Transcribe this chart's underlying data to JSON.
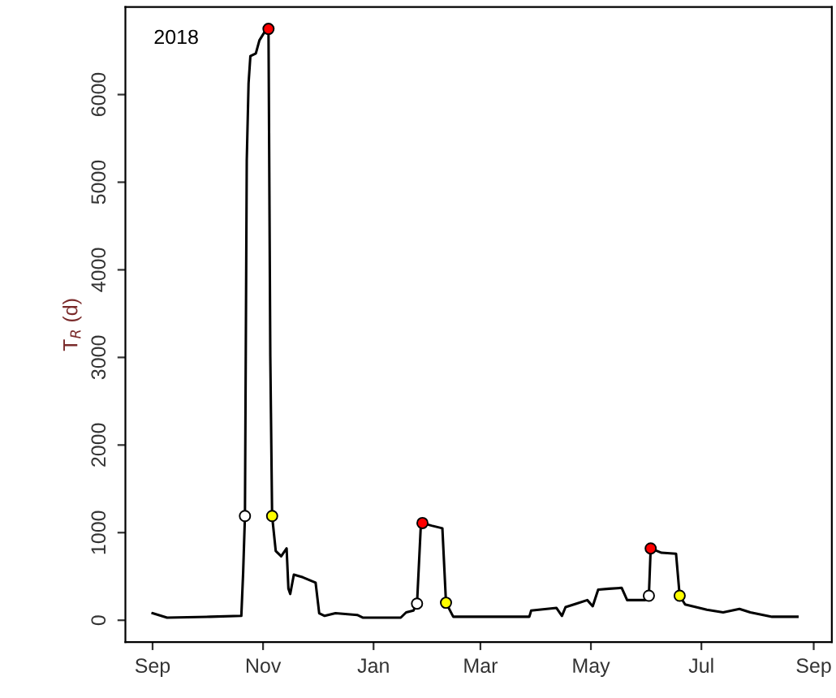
{
  "chart_data": {
    "type": "line",
    "ylabel": "T$_{R}$ (d)",
    "annotations": [
      "2018"
    ],
    "xlim": [
      "2018-08-17",
      "2019-09-11"
    ],
    "ylim": [
      -250,
      7000
    ],
    "xticks": [
      {
        "value": "2018-09-01",
        "label": "Sep"
      },
      {
        "value": "2018-11-01",
        "label": "Nov"
      },
      {
        "value": "2019-01-01",
        "label": "Jan"
      },
      {
        "value": "2019-03-01",
        "label": "Mar"
      },
      {
        "value": "2019-05-01",
        "label": "May"
      },
      {
        "value": "2019-07-01",
        "label": "Jul"
      },
      {
        "value": "2019-09-01",
        "label": "Sep"
      }
    ],
    "yticks": [
      0,
      1000,
      2000,
      3000,
      4000,
      5000,
      6000
    ],
    "grid": false,
    "series": [
      {
        "color": "#000000",
        "marker": "none",
        "line_style": "solid",
        "x": [
          "2018-09-01",
          "2018-09-09",
          "2018-10-03",
          "2018-10-20",
          "2018-10-21",
          "2018-10-22",
          "2018-10-23",
          "2018-10-24",
          "2018-10-25",
          "2018-10-28",
          "2018-10-30",
          "2018-11-02",
          "2018-11-04",
          "2018-11-05",
          "2018-11-06",
          "2018-11-08",
          "2018-11-11",
          "2018-11-14",
          "2018-11-15",
          "2018-11-16",
          "2018-11-18",
          "2018-11-23",
          "2018-11-30",
          "2018-12-02",
          "2018-12-05",
          "2018-12-11",
          "2018-12-23",
          "2018-12-26",
          "2019-01-16",
          "2019-01-19",
          "2019-01-23",
          "2019-01-25",
          "2019-01-27",
          "2019-01-28",
          "2019-02-02",
          "2019-02-08",
          "2019-02-10",
          "2019-02-14",
          "2019-03-28",
          "2019-03-29",
          "2019-04-12",
          "2019-04-15",
          "2019-04-17",
          "2019-04-23",
          "2019-04-29",
          "2019-05-02",
          "2019-05-05",
          "2019-05-11",
          "2019-05-18",
          "2019-05-21",
          "2019-05-31",
          "2019-06-02",
          "2019-06-03",
          "2019-06-09",
          "2019-06-17",
          "2019-06-19",
          "2019-06-22",
          "2019-07-04",
          "2019-07-13",
          "2019-07-22",
          "2019-07-28",
          "2019-08-09",
          "2019-08-23"
        ],
        "values": [
          80,
          30,
          40,
          50,
          540,
          1190,
          5250,
          6130,
          6440,
          6470,
          6620,
          6720,
          6750,
          3010,
          1190,
          790,
          730,
          820,
          360,
          300,
          520,
          490,
          430,
          80,
          50,
          80,
          60,
          30,
          30,
          90,
          110,
          190,
          1040,
          1110,
          1080,
          1050,
          200,
          40,
          40,
          110,
          140,
          50,
          150,
          190,
          230,
          160,
          350,
          360,
          370,
          230,
          230,
          280,
          820,
          770,
          760,
          280,
          180,
          120,
          90,
          130,
          90,
          40,
          40
        ]
      },
      {
        "type": "scatter",
        "color": "#ffffff",
        "marker": "circle",
        "x": [
          "2018-10-22",
          "2019-01-25",
          "2019-06-02"
        ],
        "values": [
          1190,
          190,
          280
        ]
      },
      {
        "type": "scatter",
        "color": "#ff0000",
        "marker": "circle",
        "x": [
          "2018-11-04",
          "2019-01-28",
          "2019-06-03"
        ],
        "values": [
          6750,
          1110,
          820
        ]
      },
      {
        "type": "scatter",
        "color": "#ffff00",
        "marker": "circle",
        "x": [
          "2018-11-06",
          "2019-02-10",
          "2019-06-19"
        ],
        "values": [
          1190,
          200,
          280
        ]
      }
    ]
  }
}
